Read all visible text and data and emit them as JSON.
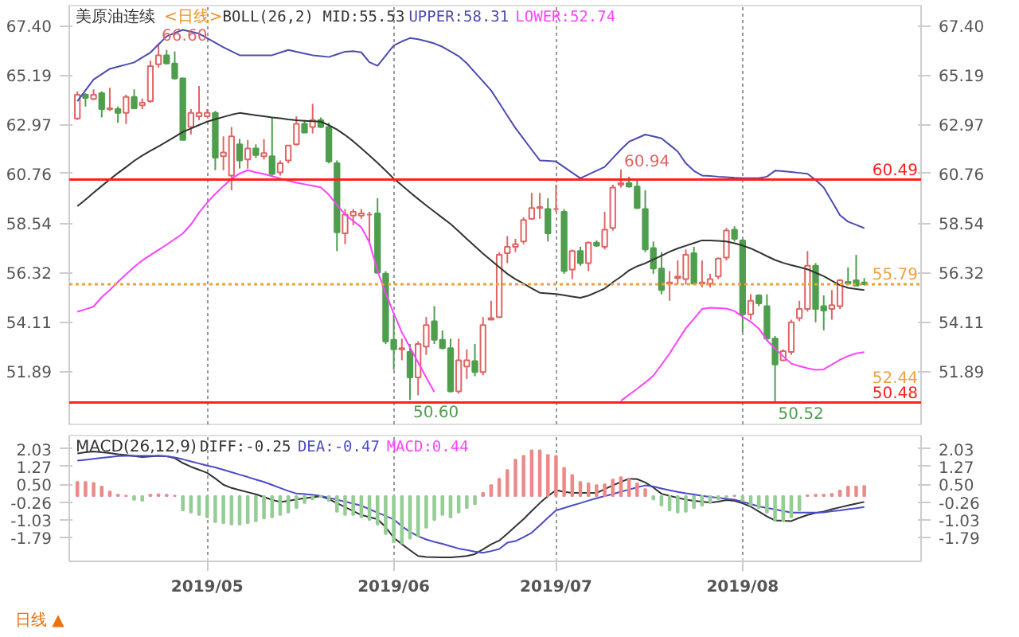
{
  "chart_data": [
    {
      "type": "candlestick",
      "title": "美原油连续",
      "subtitle": "<日线>",
      "categories": [
        null,
        null,
        null,
        null,
        null,
        null,
        null,
        null,
        null,
        null,
        null,
        null,
        null,
        null,
        null,
        null,
        "2019/05",
        null,
        null,
        null,
        null,
        null,
        null,
        null,
        null,
        null,
        null,
        null,
        null,
        null,
        null,
        null,
        null,
        null,
        null,
        null,
        null,
        null,
        null,
        "2019/06",
        null,
        null,
        null,
        null,
        null,
        null,
        null,
        null,
        null,
        null,
        null,
        null,
        null,
        null,
        null,
        null,
        null,
        null,
        null,
        "2019/07",
        null,
        null,
        null,
        null,
        null,
        null,
        null,
        null,
        null,
        null,
        null,
        null,
        null,
        null,
        null,
        null,
        null,
        null,
        null,
        null,
        null,
        null,
        "2019/08",
        null,
        null,
        null,
        null,
        null,
        null,
        null,
        null,
        null,
        null,
        null,
        null,
        null,
        null,
        null
      ],
      "ohlc": [
        [
          63.23,
          64.45,
          63.16,
          64.3
        ],
        [
          64.3,
          64.37,
          63.77,
          64.15
        ],
        [
          64.11,
          64.54,
          64.06,
          64.3
        ],
        [
          64.37,
          64.45,
          63.28,
          63.65
        ],
        [
          63.65,
          64.61,
          63.57,
          63.69
        ],
        [
          63.65,
          63.77,
          63.04,
          63.48
        ],
        [
          63.48,
          64.3,
          62.99,
          64.2
        ],
        [
          64.2,
          64.54,
          63.65,
          63.69
        ],
        [
          63.82,
          64.13,
          63.65,
          63.94
        ],
        [
          64.01,
          65.83,
          63.94,
          65.58
        ],
        [
          65.66,
          66.6,
          65.51,
          66.07
        ],
        [
          66.07,
          66.31,
          65.66,
          65.7
        ],
        [
          65.7,
          66.24,
          64.98,
          65.03
        ],
        [
          65.03,
          65.07,
          62.27,
          62.27
        ],
        [
          62.85,
          63.65,
          62.51,
          63.48
        ],
        [
          63.33,
          64.69,
          63.16,
          63.48
        ],
        [
          63.33,
          63.65,
          63.28,
          63.48
        ],
        [
          63.48,
          63.57,
          60.91,
          61.47
        ],
        [
          61.54,
          62.43,
          60.91,
          61.71
        ],
        [
          60.67,
          62.85,
          60.01,
          62.43
        ],
        [
          62.07,
          62.31,
          60.98,
          61.35
        ],
        [
          61.39,
          62.27,
          60.98,
          61.88
        ],
        [
          61.88,
          62.07,
          61.47,
          61.59
        ],
        [
          61.54,
          62.31,
          61.39,
          61.68
        ],
        [
          61.54,
          63.28,
          60.67,
          60.74
        ],
        [
          60.81,
          61.35,
          60.67,
          61.22
        ],
        [
          61.35,
          62.02,
          61.22,
          62.02
        ],
        [
          62.07,
          63.33,
          62.02,
          62.99
        ],
        [
          62.99,
          63.16,
          62.6,
          62.6
        ],
        [
          62.85,
          63.89,
          62.56,
          63.16
        ],
        [
          63.16,
          63.28,
          62.8,
          62.85
        ],
        [
          62.85,
          63.04,
          61.22,
          61.3
        ],
        [
          61.22,
          61.35,
          57.28,
          58.12
        ],
        [
          58.08,
          59.17,
          57.59,
          58.92
        ],
        [
          58.87,
          59.17,
          58.44,
          59.04
        ],
        [
          58.87,
          59.17,
          58.73,
          58.97
        ],
        [
          58.92,
          59.04,
          57.59,
          58.92
        ],
        [
          58.97,
          59.65,
          56.26,
          56.31
        ],
        [
          56.26,
          56.38,
          53.11,
          53.23
        ],
        [
          53.3,
          54.44,
          51.95,
          52.87
        ],
        [
          52.87,
          53.35,
          52.38,
          52.92
        ],
        [
          52.75,
          53.11,
          50.6,
          51.61
        ],
        [
          51.61,
          53.23,
          50.81,
          53.11
        ],
        [
          52.99,
          54.32,
          52.62,
          53.96
        ],
        [
          54.13,
          54.81,
          53.11,
          53.3
        ],
        [
          53.3,
          53.72,
          52.87,
          52.92
        ],
        [
          52.92,
          53.35,
          50.93,
          50.98
        ],
        [
          50.98,
          53.35,
          50.88,
          52.38
        ],
        [
          52.1,
          52.87,
          51.54,
          52.38
        ],
        [
          52.34,
          53.11,
          51.66,
          51.85
        ],
        [
          51.85,
          54.32,
          51.71,
          53.96
        ],
        [
          54.2,
          55.05,
          54.2,
          54.27
        ],
        [
          54.32,
          57.23,
          54.27,
          57.11
        ],
        [
          57.18,
          57.95,
          56.74,
          57.47
        ],
        [
          57.47,
          57.83,
          57.23,
          57.59
        ],
        [
          57.71,
          58.8,
          57.59,
          58.68
        ],
        [
          58.73,
          59.89,
          58.68,
          59.21
        ],
        [
          59.21,
          59.89,
          58.73,
          59.26
        ],
        [
          59.17,
          59.65,
          57.71,
          58.08
        ],
        [
          59.17,
          60.26,
          59.04,
          59.17
        ],
        [
          59.04,
          59.17,
          56.26,
          56.38
        ],
        [
          56.45,
          57.35,
          56.02,
          57.28
        ],
        [
          57.28,
          57.47,
          56.62,
          56.74
        ],
        [
          56.74,
          57.71,
          56.38,
          57.66
        ],
        [
          57.66,
          57.76,
          57.47,
          57.52
        ],
        [
          57.47,
          59.04,
          57.35,
          58.24
        ],
        [
          58.32,
          60.26,
          58.2,
          60.13
        ],
        [
          60.26,
          60.94,
          60.13,
          60.33
        ],
        [
          60.33,
          60.62,
          60.13,
          60.18
        ],
        [
          60.18,
          60.5,
          59.17,
          59.21
        ],
        [
          59.17,
          60.01,
          57.23,
          57.35
        ],
        [
          57.42,
          57.71,
          56.26,
          56.5
        ],
        [
          56.5,
          57.23,
          55.34,
          55.53
        ],
        [
          55.82,
          56.38,
          55.05,
          55.87
        ],
        [
          56.07,
          56.86,
          55.77,
          56.14
        ],
        [
          56.02,
          57.35,
          55.77,
          57.11
        ],
        [
          57.18,
          57.47,
          55.77,
          55.82
        ],
        [
          55.82,
          56.86,
          55.65,
          55.87
        ],
        [
          55.82,
          56.26,
          55.65,
          56.02
        ],
        [
          56.14,
          56.99,
          56.02,
          56.94
        ],
        [
          56.99,
          58.32,
          56.86,
          58.2
        ],
        [
          58.24,
          58.39,
          57.71,
          57.83
        ],
        [
          57.76,
          57.83,
          53.64,
          54.44
        ],
        [
          54.44,
          55.34,
          54.2,
          55.05
        ],
        [
          55.29,
          55.34,
          54.81,
          54.93
        ],
        [
          54.81,
          55.34,
          53.23,
          53.35
        ],
        [
          53.35,
          53.47,
          50.52,
          52.19
        ],
        [
          52.38,
          52.87,
          52.34,
          52.79
        ],
        [
          52.75,
          54.2,
          52.62,
          54.08
        ],
        [
          54.27,
          55.05,
          54.13,
          54.68
        ],
        [
          54.68,
          57.28,
          54.56,
          56.62
        ],
        [
          56.62,
          56.74,
          54.08,
          54.68
        ],
        [
          54.81,
          55.29,
          53.72,
          54.61
        ],
        [
          54.68,
          55.53,
          54.2,
          54.85
        ],
        [
          54.81,
          56.02,
          54.68,
          55.97
        ],
        [
          55.9,
          56.55,
          55.77,
          55.82
        ],
        [
          55.97,
          57.11,
          55.73,
          55.73
        ],
        [
          55.87,
          56.07,
          55.73,
          55.79
        ]
      ],
      "series": [
        {
          "name": "BOLL(26,2) MID:55.53",
          "type": "line",
          "color": "#333333",
          "values": [
            59.29,
            59.59,
            59.9,
            60.2,
            60.5,
            60.78,
            61.05,
            61.33,
            61.57,
            61.78,
            61.98,
            62.19,
            62.41,
            62.63,
            62.78,
            62.94,
            63.09,
            63.2,
            63.3,
            63.4,
            63.48,
            63.43,
            63.38,
            63.33,
            63.28,
            63.24,
            63.19,
            63.15,
            63.13,
            63.11,
            63.09,
            62.93,
            62.74,
            62.49,
            62.21,
            61.89,
            61.57,
            61.24,
            60.89,
            60.53,
            60.23,
            59.92,
            59.62,
            59.33,
            59.05,
            58.77,
            58.5,
            58.17,
            57.83,
            57.5,
            57.17,
            56.86,
            56.56,
            56.26,
            56.02,
            55.82,
            55.61,
            55.41,
            55.38,
            55.35,
            55.3,
            55.24,
            55.18,
            55.28,
            55.44,
            55.6,
            55.88,
            56.13,
            56.41,
            56.6,
            56.73,
            56.9,
            57.07,
            57.25,
            57.4,
            57.52,
            57.64,
            57.76,
            57.76,
            57.74,
            57.71,
            57.63,
            57.53,
            57.4,
            57.23,
            57.05,
            56.88,
            56.75,
            56.65,
            56.56,
            56.46,
            56.31,
            56.15,
            55.95,
            55.75,
            55.63,
            55.58,
            55.53
          ]
        },
        {
          "name": "UPPER:58.31",
          "type": "line",
          "color": "#4b4bb0",
          "values": [
            64.01,
            64.5,
            64.98,
            65.22,
            65.46,
            65.56,
            65.65,
            65.75,
            65.97,
            66.19,
            66.56,
            66.92,
            67.07,
            67.21,
            67.13,
            67.04,
            66.84,
            66.63,
            66.43,
            66.25,
            66.07,
            66.07,
            66.07,
            66.07,
            66.07,
            66.19,
            66.31,
            66.23,
            66.15,
            66.07,
            66.03,
            65.99,
            66.11,
            66.23,
            66.25,
            66.2,
            65.76,
            65.6,
            66.05,
            66.51,
            66.69,
            66.84,
            66.79,
            66.7,
            66.6,
            66.45,
            66.24,
            66.03,
            65.71,
            65.3,
            64.9,
            64.49,
            63.93,
            63.36,
            62.8,
            62.32,
            61.83,
            61.35,
            61.33,
            61.3,
            61.05,
            60.8,
            60.55,
            60.72,
            60.89,
            61.06,
            61.45,
            61.84,
            62.19,
            62.35,
            62.51,
            62.43,
            62.34,
            62.05,
            61.75,
            61.22,
            60.88,
            60.67,
            60.65,
            60.62,
            60.6,
            60.57,
            60.55,
            60.55,
            60.55,
            60.62,
            60.89,
            60.87,
            60.83,
            60.79,
            60.75,
            60.47,
            60.13,
            59.52,
            58.89,
            58.6,
            58.46,
            58.31
          ]
        },
        {
          "name": "LOWER:52.74",
          "type": "line",
          "color": "#ff40ff",
          "values": [
            54.56,
            54.67,
            54.79,
            55.21,
            55.53,
            55.9,
            56.24,
            56.57,
            56.86,
            57.1,
            57.33,
            57.57,
            57.82,
            58.07,
            58.47,
            59.01,
            59.45,
            59.85,
            60.2,
            60.52,
            60.76,
            60.91,
            60.81,
            60.74,
            60.64,
            60.54,
            60.44,
            60.35,
            60.28,
            60.21,
            60.14,
            59.81,
            59.35,
            58.92,
            58.63,
            58.35,
            57.67,
            56.38,
            55.39,
            54.48,
            53.63,
            52.96,
            52.28,
            51.61,
            50.96,
            null,
            null,
            null,
            null,
            null,
            null,
            null,
            null,
            null,
            null,
            null,
            null,
            null,
            null,
            null,
            null,
            null,
            null,
            null,
            null,
            null,
            null,
            50.56,
            50.83,
            51.1,
            51.38,
            51.69,
            52.18,
            52.68,
            53.25,
            53.81,
            54.24,
            54.68,
            54.74,
            54.72,
            54.7,
            54.59,
            54.33,
            54.11,
            53.8,
            53.28,
            52.9,
            52.56,
            52.23,
            52.12,
            52.02,
            51.95,
            51.97,
            52.19,
            52.4,
            52.57,
            52.69,
            52.74
          ]
        }
      ],
      "ylim": [
        49.5,
        68.3
      ],
      "yticks": [
        {
          "value": 67.4,
          "label": "67.40"
        },
        65.19,
        62.97,
        60.76,
        58.54,
        56.32,
        54.11,
        51.89
      ],
      "y2lim": [
        49.5,
        68.3
      ],
      "y2ticks": [
        {
          "value": 67.4,
          "label": "67.40"
        },
        65.19,
        62.97,
        60.76,
        58.54,
        56.32,
        54.11,
        51.89
      ],
      "tick_labels": "y",
      "grid": "x",
      "legend": "top",
      "ref_lines": [
        {
          "axis": "y",
          "value": 60.49,
          "label": "60.49",
          "color": "#ff2020",
          "line_style": "solid"
        },
        {
          "axis": "y",
          "value": 50.48,
          "label": "50.48",
          "color": "#ff2020",
          "line_style": "solid"
        },
        {
          "axis": "y",
          "value": 55.79,
          "label": "55.79",
          "color": "#f0a040",
          "line_style": "dotted"
        }
      ],
      "annotations": [
        "66.60",
        "50.60",
        "60.94",
        "50.52",
        "52.44"
      ]
    },
    {
      "type": "bar",
      "title": "MACD(26,12,9)",
      "categories": [
        null,
        null,
        null,
        null,
        null,
        null,
        null,
        null,
        null,
        null,
        null,
        null,
        null,
        null,
        null,
        null,
        "2019/05",
        null,
        null,
        null,
        null,
        null,
        null,
        null,
        null,
        null,
        null,
        null,
        null,
        null,
        null,
        null,
        null,
        null,
        null,
        null,
        null,
        null,
        null,
        "2019/06",
        null,
        null,
        null,
        null,
        null,
        null,
        null,
        null,
        null,
        null,
        null,
        null,
        null,
        null,
        null,
        null,
        null,
        null,
        null,
        "2019/07",
        null,
        null,
        null,
        null,
        null,
        null,
        null,
        null,
        null,
        null,
        null,
        null,
        null,
        null,
        null,
        null,
        null,
        null,
        null,
        null,
        null,
        null,
        "2019/08",
        null,
        null,
        null,
        null,
        null,
        null,
        null,
        null,
        null,
        null,
        null,
        null,
        null,
        null,
        null
      ],
      "series": [
        {
          "type": "bar",
          "color": "#ec8a8a",
          "values": [
            0.61,
            0.61,
            0.57,
            0.41,
            0.2,
            0.06,
            0.02,
            null,
            null,
            0.06,
            0.08,
            0.06,
            0.02,
            null,
            null,
            null,
            null,
            null,
            null,
            null,
            null,
            null,
            null,
            null,
            null,
            null,
            null,
            null,
            null,
            null,
            null,
            null,
            null,
            null,
            null,
            null,
            null,
            null,
            null,
            null,
            null,
            null,
            null,
            null,
            null,
            null,
            null,
            null,
            null,
            null,
            0.14,
            0.47,
            0.75,
            1.12,
            1.57,
            1.73,
            1.97,
            1.97,
            1.77,
            1.73,
            1.22,
            0.91,
            0.61,
            0.55,
            0.47,
            0.51,
            0.71,
            0.81,
            0.75,
            0.55,
            0.3,
            null,
            null,
            null,
            null,
            null,
            null,
            null,
            null,
            null,
            null,
            0.02,
            null,
            null,
            null,
            null,
            null,
            null,
            null,
            null,
            0.04,
            0.06,
            0.06,
            0.1,
            0.24,
            0.41,
            0.41,
            0.44
          ]
        },
        {
          "type": "bar",
          "color": "#96cc96",
          "values": [
            null,
            null,
            null,
            null,
            null,
            null,
            null,
            -0.16,
            -0.2,
            null,
            null,
            null,
            null,
            -0.61,
            -0.71,
            -0.81,
            -0.91,
            -1.12,
            -1.16,
            -1.22,
            -1.22,
            -1.16,
            -1.08,
            -0.96,
            -0.91,
            -0.81,
            -0.71,
            -0.51,
            -0.3,
            -0.14,
            -0.04,
            -0.2,
            -0.67,
            -0.81,
            -0.81,
            -0.91,
            -1.02,
            -1.22,
            -1.63,
            -1.98,
            -2.03,
            -1.83,
            -1.73,
            -1.36,
            -1.02,
            -0.81,
            -0.91,
            -0.71,
            -0.51,
            -0.35,
            null,
            null,
            null,
            null,
            null,
            null,
            null,
            null,
            null,
            null,
            null,
            null,
            null,
            null,
            null,
            null,
            null,
            null,
            null,
            null,
            null,
            -0.14,
            -0.41,
            -0.61,
            -0.71,
            -0.67,
            -0.51,
            -0.41,
            -0.3,
            -0.14,
            -0.06,
            null,
            -0.2,
            -0.41,
            -0.51,
            -0.71,
            -1.02,
            -1.08,
            -0.91,
            -0.61,
            null,
            null,
            null,
            null,
            null,
            null,
            null,
            null
          ]
        },
        {
          "name": "DIFF:-0.25",
          "type": "line",
          "color": "#333333",
          "values": [
            1.83,
            1.88,
            1.92,
            1.88,
            1.85,
            1.8,
            1.76,
            1.72,
            1.68,
            1.7,
            1.73,
            1.71,
            1.63,
            1.42,
            1.26,
            1.13,
            1.0,
            0.76,
            0.49,
            0.35,
            0.26,
            0.17,
            0.08,
            -0.04,
            -0.16,
            -0.25,
            -0.2,
            -0.14,
            -0.09,
            -0.05,
            -0.01,
            -0.13,
            -0.3,
            -0.47,
            -0.64,
            -0.81,
            -0.9,
            -0.99,
            -1.33,
            -1.79,
            -2.06,
            -2.32,
            -2.57,
            -2.61,
            -2.62,
            -2.63,
            -2.63,
            -2.6,
            -2.57,
            -2.49,
            -2.28,
            -2.07,
            -1.91,
            -1.61,
            -1.3,
            -0.99,
            -0.64,
            -0.3,
            0.0,
            0.26,
            0.18,
            0.14,
            0.14,
            0.14,
            0.14,
            0.3,
            0.46,
            0.61,
            0.75,
            0.73,
            0.59,
            0.37,
            0.1,
            0.01,
            -0.07,
            -0.15,
            -0.2,
            -0.24,
            -0.28,
            -0.24,
            -0.17,
            -0.2,
            -0.31,
            -0.45,
            -0.66,
            -0.87,
            -1.04,
            -1.06,
            -1.07,
            -0.93,
            -0.81,
            -0.72,
            -0.66,
            -0.56,
            -0.48,
            -0.4,
            -0.32,
            -0.25
          ]
        },
        {
          "name": "DEA:-0.47",
          "type": "line",
          "color": "#4b4bc8",
          "values": [
            1.52,
            1.56,
            1.6,
            1.64,
            1.68,
            1.72,
            1.73,
            1.73,
            1.73,
            1.73,
            1.73,
            1.71,
            1.66,
            1.58,
            1.49,
            1.4,
            1.31,
            1.23,
            1.13,
            1.03,
            0.92,
            0.82,
            0.71,
            0.61,
            0.48,
            0.35,
            0.22,
            0.11,
            0.09,
            0.05,
            0.01,
            -0.07,
            -0.15,
            -0.24,
            -0.32,
            -0.41,
            -0.56,
            -0.71,
            -0.85,
            -1.0,
            -1.3,
            -1.53,
            -1.72,
            -1.86,
            -1.96,
            -2.05,
            -2.15,
            -2.25,
            -2.31,
            -2.38,
            -2.43,
            -2.36,
            -2.27,
            -2.0,
            -1.93,
            -1.76,
            -1.57,
            -1.25,
            -0.93,
            -0.61,
            -0.51,
            -0.4,
            -0.3,
            -0.19,
            -0.09,
            0.0,
            0.09,
            0.19,
            0.28,
            0.38,
            0.46,
            0.41,
            0.33,
            0.25,
            0.18,
            0.12,
            0.07,
            0.01,
            -0.03,
            -0.07,
            -0.12,
            -0.15,
            -0.24,
            -0.34,
            -0.44,
            -0.51,
            -0.57,
            -0.64,
            -0.71,
            -0.71,
            -0.71,
            -0.71,
            -0.7,
            -0.65,
            -0.61,
            -0.56,
            -0.52,
            -0.47
          ]
        }
      ],
      "ylim": [
        -2.8,
        2.6
      ],
      "yticks": [
        2.03,
        1.27,
        {
          "value": 0.5,
          "label": "0.50"
        },
        -0.26,
        -1.03,
        -1.79
      ],
      "y2lim": [
        -2.8,
        2.6
      ],
      "y2ticks": [
        2.03,
        1.27,
        {
          "value": 0.5,
          "label": "0.50"
        },
        -0.26,
        -1.03,
        -1.79
      ],
      "grid": "x",
      "legend": "top left",
      "annotations": [
        "MACD:0.44",
        "日线 ▲"
      ]
    }
  ]
}
